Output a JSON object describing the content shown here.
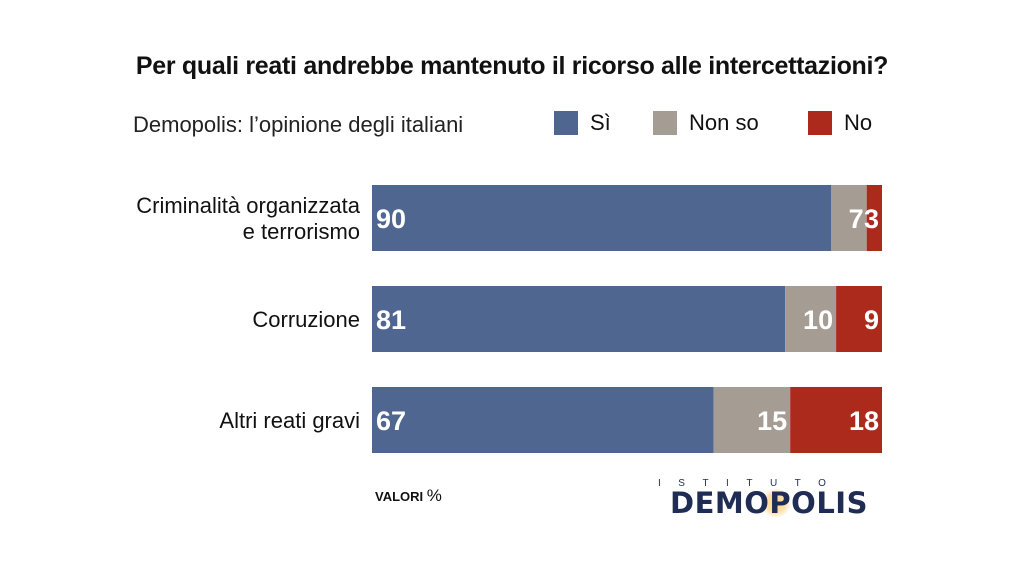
{
  "header": {
    "title": "Per quali reati andrebbe mantenuto il ricorso alle intercettazioni?",
    "subtitle": "Demopolis: l’opinione degli italiani"
  },
  "footer": {
    "note_label": "VALORI",
    "note_unit": "%"
  },
  "logo": {
    "top_text": "ISTITUTO",
    "main_text": "DEMOPOLIS"
  },
  "colors": {
    "si": "#4f6690",
    "non_so": "#a59d93",
    "no": "#ab2a1c"
  },
  "chart_data": {
    "type": "bar",
    "orientation": "horizontal",
    "stacked": true,
    "title": "Per quali reati andrebbe mantenuto il ricorso alle intercettazioni?",
    "subtitle": "Demopolis: l’opinione degli italiani",
    "unit": "%",
    "categories": [
      [
        "Criminalità organizzata",
        "e terrorismo"
      ],
      [
        "Corruzione"
      ],
      [
        "Altri reati gravi"
      ]
    ],
    "series": [
      {
        "name": "Sì",
        "color": "#4f6690",
        "values": [
          90,
          81,
          67
        ]
      },
      {
        "name": "Non so",
        "color": "#a59d93",
        "values": [
          7,
          10,
          15
        ]
      },
      {
        "name": "No",
        "color": "#ab2a1c",
        "values": [
          3,
          9,
          18
        ]
      }
    ],
    "xlim": [
      0,
      100
    ],
    "legend_position": "top-right",
    "grid": false
  }
}
